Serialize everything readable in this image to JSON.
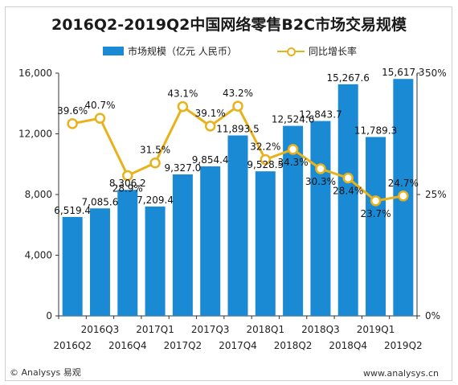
{
  "title": "2016Q2-2019Q2中国网络零售B2C市场交易规模",
  "legend": {
    "bar_label": "市场规模（亿元 人民币）",
    "line_label": "同比增长率"
  },
  "footer": {
    "left": "© Analysys 易观",
    "right": "www.analysys.cn"
  },
  "colors": {
    "bar": "#1a8ad4",
    "line": "#e9b21a"
  },
  "chart_data": {
    "type": "bar",
    "title": "2016Q2-2019Q2中国网络零售B2C市场交易规模",
    "categories": [
      "2016Q2",
      "2016Q3",
      "2016Q4",
      "2017Q1",
      "2017Q2",
      "2017Q3",
      "2017Q4",
      "2018Q1",
      "2018Q2",
      "2018Q3",
      "2018Q4",
      "2019Q1",
      "2019Q2"
    ],
    "series": [
      {
        "name": "市场规模（亿元 人民币）",
        "type": "bar",
        "axis": "left",
        "values": [
          6519.4,
          7085.6,
          8306.2,
          7209.4,
          9327.0,
          9854.4,
          11893.5,
          9528.5,
          12524.6,
          12843.7,
          15267.6,
          11789.3,
          15617.3
        ],
        "labels": [
          "6,519.4",
          "7,085.6",
          "8,306.2",
          "7,209.4",
          "9,327.0",
          "9,854.4",
          "11,893.5",
          "9,528.5",
          "12,524.6",
          "12,843.7",
          "15,267.6",
          "11,789.3",
          "15,617.3"
        ]
      },
      {
        "name": "同比增长率",
        "type": "line",
        "axis": "right",
        "values": [
          39.6,
          40.7,
          28.9,
          31.5,
          43.1,
          39.1,
          43.2,
          32.2,
          34.3,
          30.3,
          28.4,
          23.7,
          24.7
        ],
        "labels": [
          "39.6%",
          "40.7%",
          "28.9%",
          "31.5%",
          "43.1%",
          "39.1%",
          "43.2%",
          "32.2%",
          "34.3%",
          "30.3%",
          "28.4%",
          "23.7%",
          "24.7%"
        ]
      }
    ],
    "y_left": {
      "ylim": [
        0,
        16000
      ],
      "ticks": [
        0,
        4000,
        8000,
        12000,
        16000
      ],
      "tick_labels": [
        "0",
        "4,000",
        "8,000",
        "12,000",
        "16,000"
      ]
    },
    "y_right": {
      "ylim": [
        0,
        50
      ],
      "ticks": [
        0,
        25,
        50
      ],
      "tick_labels": [
        "0%",
        "25%",
        "50%"
      ]
    },
    "x_tick_labels_row1": [
      "2016Q3",
      "2017Q1",
      "2017Q3",
      "2018Q1",
      "2018Q3",
      "2019Q1"
    ],
    "x_tick_labels_row2": [
      "2016Q2",
      "2016Q4",
      "2017Q2",
      "2017Q4",
      "2018Q2",
      "2018Q4",
      "2019Q2"
    ],
    "grid": false,
    "legend_position": "top"
  }
}
